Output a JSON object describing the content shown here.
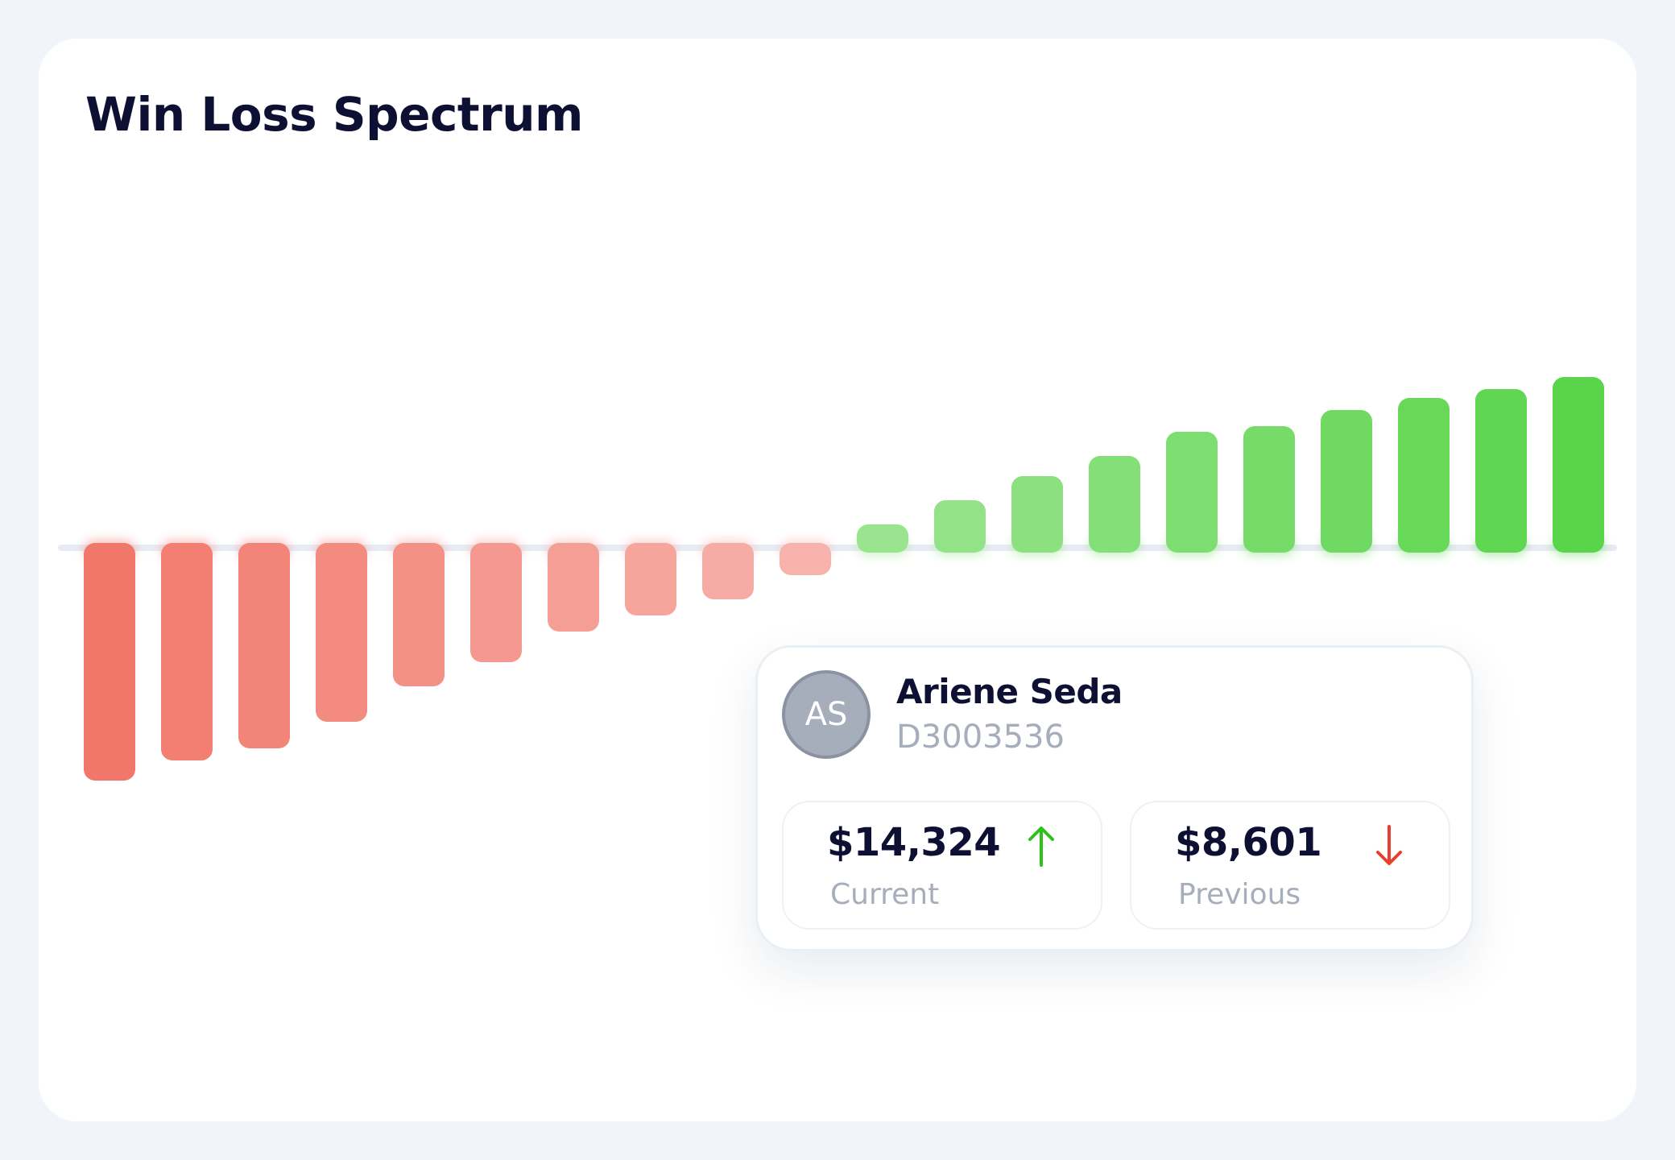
{
  "header": {
    "title": "Win Loss Spectrum"
  },
  "chart_data": {
    "type": "bar",
    "title": "Win Loss Spectrum",
    "baseline": 0,
    "values": [
      -295,
      -270,
      -255,
      -222,
      -178,
      -148,
      -110,
      -90,
      -70,
      -40,
      35,
      65,
      95,
      120,
      150,
      157,
      177,
      192,
      203,
      218
    ],
    "ylim": [
      -300,
      230
    ],
    "grid": false,
    "legend": "none",
    "colors": {
      "loss_strong": "#f2776b",
      "loss_weak": "#f7b2ab",
      "win_weak": "#9ae48f",
      "win_strong": "#5ad44a",
      "baseline": "#e8ebf4"
    }
  },
  "tooltip": {
    "avatar_initials": "AS",
    "name": "Ariene Seda",
    "id": "D3003536",
    "current": {
      "value": "$14,324",
      "label": "Current",
      "trend": "up",
      "trend_icon": "arrow-up-icon",
      "trend_color": "#2ec11c"
    },
    "previous": {
      "value": "$8,601",
      "label": "Previous",
      "trend": "down",
      "trend_icon": "arrow-down-icon",
      "trend_color": "#e8402f"
    }
  }
}
